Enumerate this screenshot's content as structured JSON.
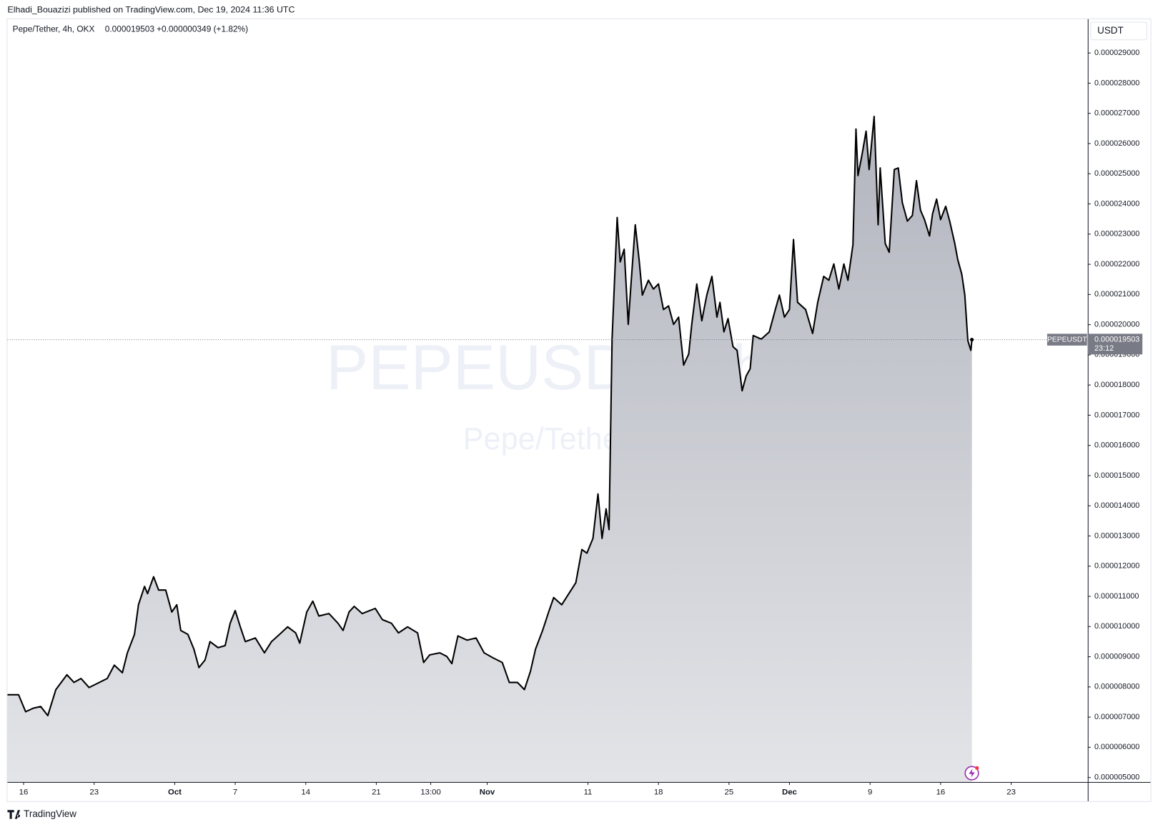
{
  "header": {
    "published": "Elhadi_Bouazizi published on TradingView.com, Dec 19, 2024 11:36 UTC"
  },
  "footer": {
    "brand": "TradingView"
  },
  "chart_data": {
    "type": "area",
    "title": "Pepe/Tether, 4h, OKX",
    "last_price_label": "0.000019503",
    "change_label": "+0.000000349 (+1.82%)",
    "watermark": "PEPEUSDT, 4h",
    "watermark_subtitle": "Pepe/Tether",
    "y_axis_unit": "USDT",
    "symbol": "PEPEUSDT",
    "countdown": "23:12",
    "color": "#000000",
    "grid": false,
    "xlim": [
      -1.6,
      105.6
    ],
    "ylim": [
      4.85e-06,
      3.012e-05
    ],
    "xticks": [
      {
        "value": 0,
        "label": "16"
      },
      {
        "value": 7,
        "label": "23"
      },
      {
        "value": 15,
        "label": "Oct"
      },
      {
        "value": 21,
        "label": "7"
      },
      {
        "value": 28,
        "label": "14"
      },
      {
        "value": 35,
        "label": "21"
      },
      {
        "value": 40.4,
        "label": "13:00"
      },
      {
        "value": 46,
        "label": "Nov"
      },
      {
        "value": 56,
        "label": "11"
      },
      {
        "value": 63,
        "label": "18"
      },
      {
        "value": 70,
        "label": "25"
      },
      {
        "value": 76,
        "label": "Dec"
      },
      {
        "value": 84,
        "label": "9"
      },
      {
        "value": 91,
        "label": "16"
      },
      {
        "value": 98,
        "label": "23"
      }
    ],
    "yticks": [
      {
        "value": 5e-06,
        "label": "0.000005000"
      },
      {
        "value": 6e-06,
        "label": "0.000006000"
      },
      {
        "value": 7e-06,
        "label": "0.000007000"
      },
      {
        "value": 8e-06,
        "label": "0.000008000"
      },
      {
        "value": 9e-06,
        "label": "0.000009000"
      },
      {
        "value": 1e-05,
        "label": "0.000010000"
      },
      {
        "value": 1.1e-05,
        "label": "0.000011000"
      },
      {
        "value": 1.2e-05,
        "label": "0.000012000"
      },
      {
        "value": 1.3e-05,
        "label": "0.000013000"
      },
      {
        "value": 1.4e-05,
        "label": "0.000014000"
      },
      {
        "value": 1.5e-05,
        "label": "0.000015000"
      },
      {
        "value": 1.6e-05,
        "label": "0.000016000"
      },
      {
        "value": 1.7e-05,
        "label": "0.000017000"
      },
      {
        "value": 1.8e-05,
        "label": "0.000018000"
      },
      {
        "value": 1.9e-05,
        "label": "0.000019000"
      },
      {
        "value": 2e-05,
        "label": "0.000020000"
      },
      {
        "value": 2.1e-05,
        "label": "0.000021000"
      },
      {
        "value": 2.2e-05,
        "label": "0.000022000"
      },
      {
        "value": 2.3e-05,
        "label": "0.000023000"
      },
      {
        "value": 2.4e-05,
        "label": "0.000024000"
      },
      {
        "value": 2.5e-05,
        "label": "0.000025000"
      },
      {
        "value": 2.6e-05,
        "label": "0.000026000"
      },
      {
        "value": 2.7e-05,
        "label": "0.000027000"
      },
      {
        "value": 2.8e-05,
        "label": "0.000028000"
      },
      {
        "value": 2.9e-05,
        "label": "0.000029000"
      }
    ],
    "x": [
      -1.6,
      -0.5,
      0.2,
      1.0,
      1.7,
      2.4,
      3.2,
      4.3,
      5.0,
      5.7,
      6.5,
      8.3,
      9.0,
      9.8,
      10.3,
      11.0,
      11.4,
      12.0,
      12.3,
      12.9,
      13.4,
      14.1,
      14.7,
      15.2,
      15.6,
      16.3,
      16.9,
      17.4,
      18.0,
      18.5,
      19.3,
      20.0,
      20.5,
      21.0,
      21.5,
      22.0,
      23.0,
      23.9,
      24.6,
      25.4,
      26.2,
      27.0,
      27.4,
      28.1,
      28.7,
      29.3,
      30.3,
      31.2,
      31.7,
      32.3,
      32.8,
      33.6,
      34.9,
      35.6,
      36.5,
      37.2,
      38.1,
      39.1,
      39.7,
      40.3,
      41.3,
      42.0,
      42.5,
      43.1,
      44.0,
      44.9,
      45.7,
      46.6,
      47.5,
      48.2,
      49.0,
      49.7,
      50.3,
      50.8,
      51.5,
      52.1,
      52.6,
      53.4,
      54.1,
      54.8,
      55.4,
      55.9,
      56.5,
      57.0,
      57.4,
      57.8,
      58.1,
      58.4,
      58.9,
      59.2,
      59.6,
      60.0,
      60.3,
      60.7,
      61.1,
      61.4,
      62.0,
      62.5,
      63.0,
      63.5,
      64.0,
      64.5,
      65.0,
      65.5,
      66.0,
      66.3,
      66.8,
      67.3,
      67.8,
      68.3,
      68.8,
      69.1,
      69.5,
      69.9,
      70.4,
      70.8,
      71.3,
      71.7,
      72.1,
      72.4,
      73.2,
      74.0,
      74.6,
      75.0,
      75.5,
      76.0,
      76.4,
      76.8,
      77.6,
      78.3,
      78.8,
      79.4,
      79.9,
      80.4,
      80.9,
      81.4,
      81.8,
      82.3,
      82.6,
      82.8,
      83.2,
      83.6,
      83.9,
      84.4,
      84.8,
      85.0,
      85.5,
      85.9,
      86.4,
      86.8,
      87.2,
      87.7,
      88.2,
      88.6,
      89.0,
      89.4,
      89.9,
      90.2,
      90.6,
      91.0,
      91.5,
      91.9,
      92.4,
      92.7,
      93.1,
      93.4,
      93.7,
      94.0,
      94.1
    ],
    "values": [
      7.74e-06,
      7.74e-06,
      7.18e-06,
      7.3e-06,
      7.35e-06,
      7.05e-06,
      7.91e-06,
      8.4e-06,
      8.15e-06,
      8.28e-06,
      7.98e-06,
      8.28e-06,
      8.72e-06,
      8.47e-06,
      9.13e-06,
      9.74e-06,
      1.072e-05,
      1.133e-05,
      1.109e-05,
      1.165e-05,
      1.121e-05,
      1.121e-05,
      1.048e-05,
      1.072e-05,
      9.87e-06,
      9.74e-06,
      9.25e-06,
      8.64e-06,
      8.89e-06,
      9.5e-06,
      9.3e-06,
      9.37e-06,
      1.011e-05,
      1.053e-05,
      9.99e-06,
      9.5e-06,
      9.62e-06,
      9.13e-06,
      9.5e-06,
      9.74e-06,
      9.99e-06,
      9.79e-06,
      9.45e-06,
      1.048e-05,
      1.084e-05,
      1.035e-05,
      1.043e-05,
      1.011e-05,
      9.87e-06,
      1.048e-05,
      1.067e-05,
      1.043e-05,
      1.06e-05,
      1.023e-05,
      1.011e-05,
      9.79e-06,
      9.99e-06,
      9.79e-06,
      8.81e-06,
      9.06e-06,
      9.13e-06,
      9.01e-06,
      8.77e-06,
      9.69e-06,
      9.55e-06,
      9.62e-06,
      9.13e-06,
      8.96e-06,
      8.81e-06,
      8.15e-06,
      8.15e-06,
      7.91e-06,
      8.52e-06,
      9.25e-06,
      9.87e-06,
      1.048e-05,
      1.096e-05,
      1.072e-05,
      1.109e-05,
      1.145e-05,
      1.255e-05,
      1.243e-05,
      1.292e-05,
      1.439e-05,
      1.292e-05,
      1.39e-05,
      1.321e-05,
      1.952e-05,
      2.355e-05,
      2.208e-05,
      2.25e-05,
      2.001e-05,
      2.147e-05,
      2.331e-05,
      2.208e-05,
      2.098e-05,
      2.147e-05,
      2.118e-05,
      2.135e-05,
      2.05e-05,
      2.062e-05,
      2.001e-05,
      2.025e-05,
      1.866e-05,
      1.903e-05,
      2.001e-05,
      2.135e-05,
      2.013e-05,
      2.098e-05,
      2.16e-05,
      2.025e-05,
      2.074e-05,
      1.976e-05,
      2.02e-05,
      1.927e-05,
      1.915e-05,
      1.781e-05,
      1.83e-05,
      1.854e-05,
      1.964e-05,
      1.952e-05,
      1.976e-05,
      2.05e-05,
      2.098e-05,
      2.025e-05,
      2.05e-05,
      2.282e-05,
      2.074e-05,
      2.05e-05,
      1.971e-05,
      2.074e-05,
      2.16e-05,
      2.147e-05,
      2.201e-05,
      2.118e-05,
      2.201e-05,
      2.147e-05,
      2.265e-05,
      2.648e-05,
      2.494e-05,
      2.563e-05,
      2.641e-05,
      2.514e-05,
      2.69e-05,
      2.331e-05,
      2.519e-05,
      2.269e-05,
      2.24e-05,
      2.514e-05,
      2.519e-05,
      2.404e-05,
      2.343e-05,
      2.362e-05,
      2.477e-05,
      2.379e-05,
      2.348e-05,
      2.294e-05,
      2.367e-05,
      2.416e-05,
      2.348e-05,
      2.392e-05,
      2.343e-05,
      2.269e-05,
      2.216e-05,
      2.167e-05,
      2.098e-05,
      1.947e-05,
      1.915e-05,
      1.9503e-05
    ]
  }
}
